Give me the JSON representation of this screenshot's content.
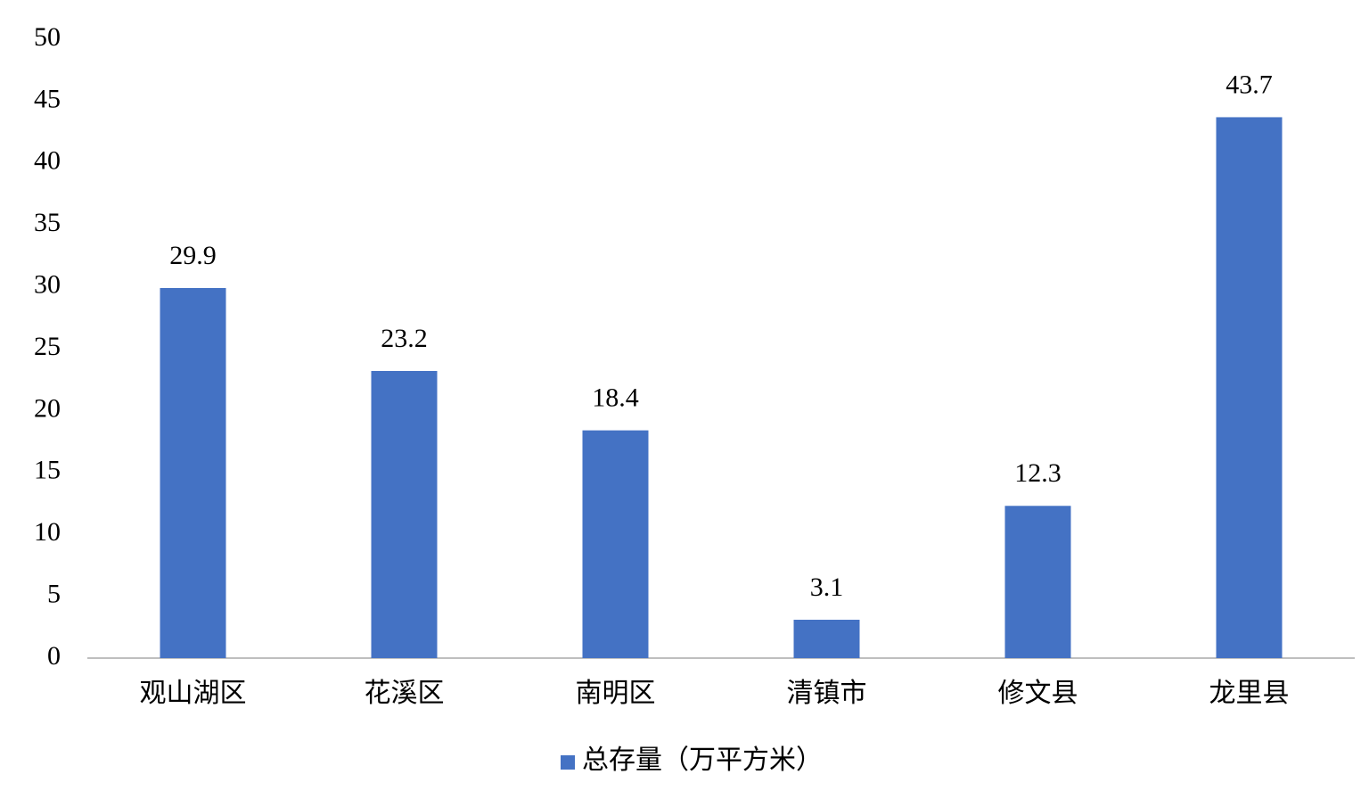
{
  "chart_data": {
    "type": "bar",
    "categories": [
      "观山湖区",
      "花溪区",
      "南明区",
      "清镇市",
      "修文县",
      "龙里县"
    ],
    "series": [
      {
        "name": "总存量（万平方米）",
        "color": "#4472c4",
        "values": [
          29.9,
          23.2,
          18.4,
          3.1,
          12.3,
          43.7
        ]
      }
    ],
    "ylim": [
      0,
      50
    ],
    "yticks": [
      0,
      5,
      10,
      15,
      20,
      25,
      30,
      35,
      40,
      45,
      50
    ],
    "grid": false,
    "legend": "bottom"
  }
}
